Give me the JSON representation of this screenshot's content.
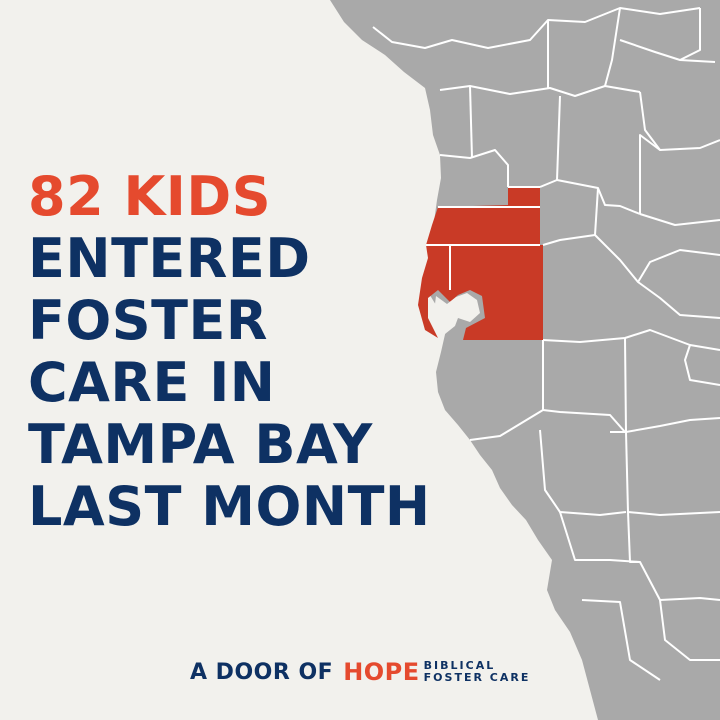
{
  "headline": {
    "highlight": "82 KIDS",
    "lines": [
      "ENTERED",
      "FOSTER",
      "CARE IN",
      "TAMPA BAY",
      "LAST MONTH"
    ]
  },
  "footer": {
    "prefix": "A DOOR OF",
    "brand": "HOPE",
    "tagline_1": "BIBLICAL",
    "tagline_2": "FOSTER CARE"
  },
  "colors": {
    "background": "#f2f1ed",
    "map_land": "#a9a9a9",
    "county_borders": "#ffffff",
    "highlighted_counties": "#c93a26",
    "accent": "#e54a2e",
    "navy": "#0e3163"
  }
}
